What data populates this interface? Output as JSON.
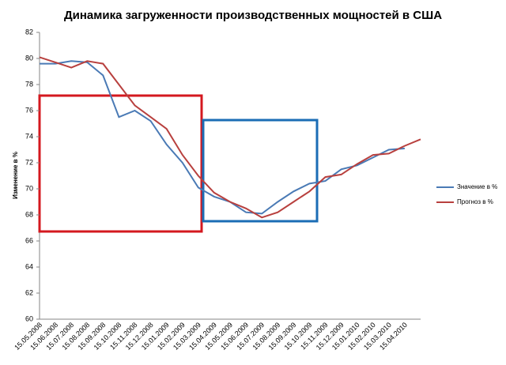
{
  "chart_data": {
    "type": "line",
    "title": "Динамика загруженности производственных мощностей в США",
    "y_label": "Изменение в %",
    "categories": [
      "15.05.2008",
      "15.06.2008",
      "15.07.2008",
      "15.08.2008",
      "15.09.2008",
      "15.10.2008",
      "15.11.2008",
      "15.12.2008",
      "15.01.2009",
      "15.02.2009",
      "15.03.2009",
      "15.04.2009",
      "15.05.2009",
      "15.06.2009",
      "15.07.2009",
      "15.08.2009",
      "15.09.2009",
      "15.10.2009",
      "15.11.2009",
      "15.12.2009",
      "15.01.2010",
      "15.02.2010",
      "15.03.2010",
      "15.04.2010",
      null
    ],
    "series": [
      {
        "name": "Значение в %",
        "color": "#4a7ab5",
        "values": [
          79.6,
          79.6,
          79.8,
          79.7,
          78.7,
          75.5,
          76.0,
          75.2,
          73.4,
          72.0,
          70.1,
          69.4,
          69.0,
          68.2,
          68.1,
          69.0,
          69.8,
          70.4,
          70.6,
          71.5,
          71.8,
          72.4,
          73.0,
          73.1,
          null
        ]
      },
      {
        "name": "Прогноз в %",
        "color": "#b8403e",
        "values": [
          80.1,
          79.7,
          79.3,
          79.8,
          79.6,
          78.0,
          76.4,
          75.5,
          74.6,
          72.6,
          71.0,
          69.7,
          69.0,
          68.5,
          67.8,
          68.2,
          69.0,
          69.8,
          70.9,
          71.1,
          71.9,
          72.6,
          72.7,
          73.3,
          73.8
        ]
      }
    ],
    "ylim": [
      60,
      82
    ],
    "yticks": [
      60,
      62,
      64,
      66,
      68,
      70,
      72,
      74,
      76,
      78,
      80,
      82
    ],
    "legend": "right"
  }
}
